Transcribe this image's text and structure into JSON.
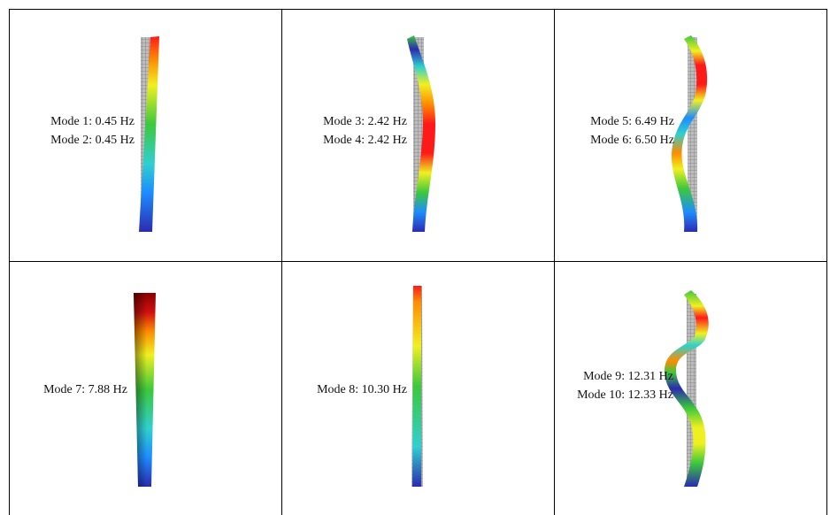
{
  "panels": [
    {
      "id": "p1",
      "modes": [
        "Mode 1: 0.45 Hz",
        "Mode 2: 0.45 Hz"
      ]
    },
    {
      "id": "p2",
      "modes": [
        "Mode 3: 2.42 Hz",
        "Mode 4: 2.42 Hz"
      ]
    },
    {
      "id": "p3",
      "modes": [
        "Mode 5: 6.49 Hz",
        "Mode 6: 6.50 Hz"
      ]
    },
    {
      "id": "p4",
      "modes": [
        "Mode 7: 7.88 Hz"
      ]
    },
    {
      "id": "p5",
      "modes": [
        "Mode 8: 10.30 Hz"
      ]
    },
    {
      "id": "p6",
      "modes": [
        "Mode 9: 12.31 Hz",
        "Mode 10: 12.33 Hz"
      ]
    }
  ],
  "colors": {
    "grid_line": "#000000",
    "undeformed_mesh": "#9a9a9a",
    "scale": [
      "#2b2bb0",
      "#1e8cff",
      "#2fd0d0",
      "#3cc83c",
      "#f0f020",
      "#ff8c00",
      "#ff1a1a"
    ]
  }
}
